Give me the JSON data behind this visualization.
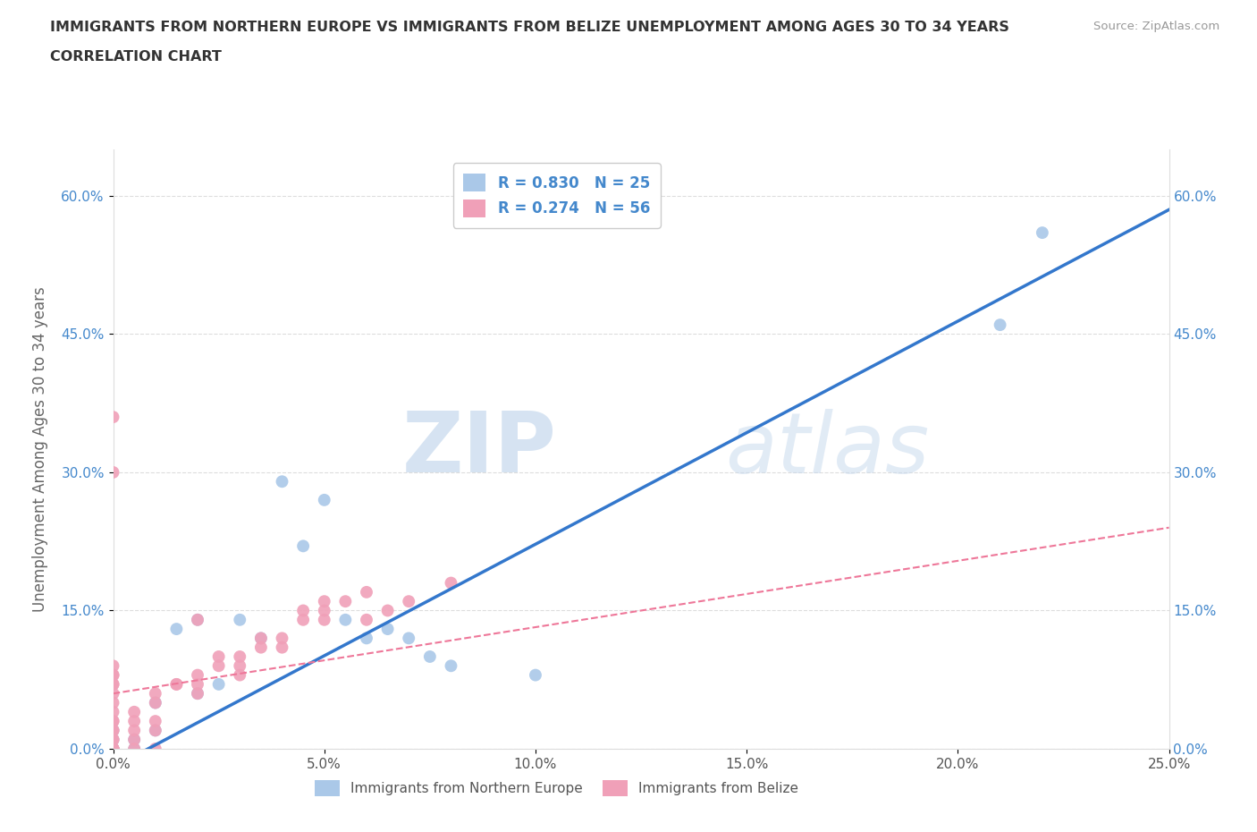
{
  "title_line1": "IMMIGRANTS FROM NORTHERN EUROPE VS IMMIGRANTS FROM BELIZE UNEMPLOYMENT AMONG AGES 30 TO 34 YEARS",
  "title_line2": "CORRELATION CHART",
  "source_text": "Source: ZipAtlas.com",
  "ylabel": "Unemployment Among Ages 30 to 34 years",
  "r_northern": 0.83,
  "n_northern": 25,
  "r_belize": 0.274,
  "n_belize": 56,
  "xlim": [
    0.0,
    0.25
  ],
  "ylim": [
    0.0,
    0.65
  ],
  "xticks": [
    0.0,
    0.05,
    0.1,
    0.15,
    0.2,
    0.25
  ],
  "xticklabels": [
    "0.0%",
    "5.0%",
    "10.0%",
    "15.0%",
    "20.0%",
    "25.0%"
  ],
  "yticks": [
    0.0,
    0.15,
    0.3,
    0.45,
    0.6
  ],
  "yticklabels": [
    "0.0%",
    "15.0%",
    "30.0%",
    "45.0%",
    "60.0%"
  ],
  "color_northern": "#aac8e8",
  "color_belize": "#f0a0b8",
  "trendline_northern_color": "#3377cc",
  "trendline_belize_color": "#ee7799",
  "watermark_zip": "ZIP",
  "watermark_atlas": "atlas",
  "background_color": "#ffffff",
  "northern_x": [
    0.0,
    0.0,
    0.0,
    0.005,
    0.005,
    0.01,
    0.01,
    0.015,
    0.02,
    0.02,
    0.025,
    0.03,
    0.035,
    0.04,
    0.045,
    0.05,
    0.055,
    0.06,
    0.065,
    0.07,
    0.075,
    0.08,
    0.1,
    0.21,
    0.22
  ],
  "northern_y": [
    0.0,
    0.01,
    0.02,
    0.0,
    0.01,
    0.02,
    0.05,
    0.13,
    0.06,
    0.14,
    0.07,
    0.14,
    0.12,
    0.29,
    0.22,
    0.27,
    0.14,
    0.12,
    0.13,
    0.12,
    0.1,
    0.09,
    0.08,
    0.46,
    0.56
  ],
  "belize_x": [
    0.0,
    0.0,
    0.0,
    0.0,
    0.0,
    0.0,
    0.0,
    0.0,
    0.0,
    0.0,
    0.0,
    0.0,
    0.0,
    0.0,
    0.0,
    0.0,
    0.0,
    0.0,
    0.0,
    0.0,
    0.005,
    0.005,
    0.005,
    0.005,
    0.005,
    0.01,
    0.01,
    0.01,
    0.01,
    0.01,
    0.015,
    0.015,
    0.02,
    0.02,
    0.02,
    0.02,
    0.025,
    0.025,
    0.03,
    0.03,
    0.03,
    0.035,
    0.035,
    0.04,
    0.04,
    0.045,
    0.045,
    0.05,
    0.05,
    0.05,
    0.055,
    0.06,
    0.06,
    0.065,
    0.07,
    0.08
  ],
  "belize_y": [
    0.0,
    0.0,
    0.0,
    0.0,
    0.01,
    0.01,
    0.02,
    0.02,
    0.03,
    0.03,
    0.04,
    0.05,
    0.06,
    0.07,
    0.07,
    0.08,
    0.08,
    0.09,
    0.3,
    0.36,
    0.0,
    0.01,
    0.02,
    0.03,
    0.04,
    0.0,
    0.02,
    0.03,
    0.05,
    0.06,
    0.07,
    0.07,
    0.06,
    0.07,
    0.08,
    0.14,
    0.09,
    0.1,
    0.08,
    0.09,
    0.1,
    0.11,
    0.12,
    0.11,
    0.12,
    0.14,
    0.15,
    0.14,
    0.15,
    0.16,
    0.16,
    0.14,
    0.17,
    0.15,
    0.16,
    0.18
  ],
  "trendline_northern_slope": 2.42,
  "trendline_northern_intercept": -0.02,
  "trendline_belize_slope": 0.72,
  "trendline_belize_intercept": 0.06
}
